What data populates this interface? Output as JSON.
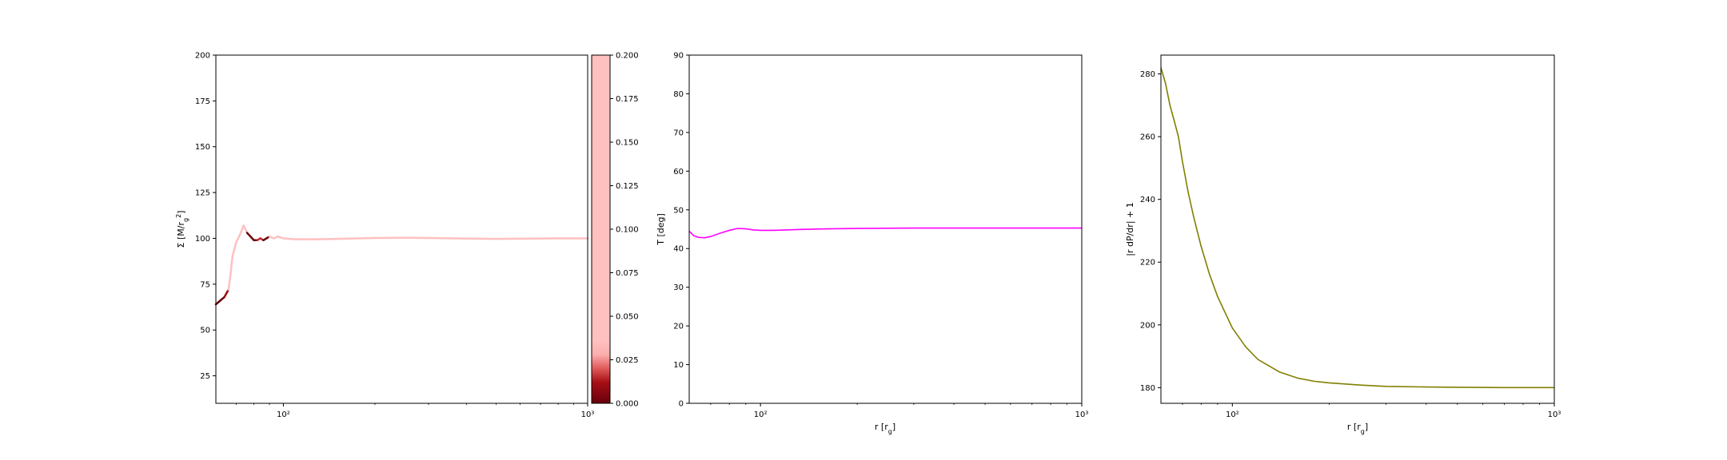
{
  "chart_data": [
    {
      "type": "line",
      "xlabel": "",
      "ylabel": "Σ [M/r_g²]",
      "xscale": "log",
      "xlim": [
        60,
        1000
      ],
      "ylim": [
        10,
        200
      ],
      "yticks": [
        25,
        50,
        75,
        100,
        125,
        150,
        175,
        200
      ],
      "xticks": [
        {
          "value": 100,
          "label": "10²"
        },
        {
          "value": 1000,
          "label": "10³"
        }
      ],
      "colormap": "reds",
      "series": [
        {
          "color_by": "colorbar value",
          "x": [
            60,
            62,
            64,
            66,
            67,
            68,
            70,
            72,
            74,
            76,
            78,
            80,
            82,
            84,
            86,
            88,
            90,
            93,
            96,
            100,
            110,
            130,
            160,
            200,
            250,
            300,
            400,
            500,
            600,
            800,
            1000
          ],
          "y": [
            64,
            66,
            68,
            72,
            80,
            90,
            98,
            102,
            107,
            103,
            101,
            99,
            99,
            100,
            99,
            100,
            101,
            100,
            101,
            100,
            99.5,
            99.5,
            99.8,
            100.2,
            100.3,
            100.2,
            99.9,
            99.7,
            99.8,
            100,
            100
          ],
          "c": [
            0.0,
            0.0,
            0.0,
            0.02,
            0.2,
            0.2,
            0.2,
            0.2,
            0.2,
            0.0,
            0.0,
            0.0,
            0.0,
            0.03,
            0.0,
            0.0,
            0.0,
            0.1,
            0.06,
            0.15,
            0.2,
            0.2,
            0.2,
            0.2,
            0.2,
            0.2,
            0.2,
            0.2,
            0.2,
            0.2,
            0.2
          ]
        }
      ],
      "colorbar": {
        "range": [
          0,
          0.2
        ],
        "ticks": [
          "0.000",
          "0.025",
          "0.050",
          "0.075",
          "0.100",
          "0.125",
          "0.150",
          "0.175",
          "0.200"
        ]
      }
    },
    {
      "type": "line",
      "xlabel": "r [r_g]",
      "ylabel": "T [deg]",
      "xscale": "log",
      "xlim": [
        60,
        1000
      ],
      "ylim": [
        0,
        90
      ],
      "yticks": [
        0,
        10,
        20,
        30,
        40,
        50,
        60,
        70,
        80,
        90
      ],
      "xticks": [
        {
          "value": 100,
          "label": "10²"
        },
        {
          "value": 1000,
          "label": "10³"
        }
      ],
      "series": [
        {
          "color": "#ff00ff",
          "x": [
            60,
            62,
            64,
            67,
            70,
            75,
            80,
            85,
            90,
            95,
            100,
            110,
            130,
            160,
            200,
            300,
            400,
            600,
            1000
          ],
          "y": [
            44.5,
            43.3,
            42.9,
            42.8,
            43.1,
            44.0,
            44.7,
            45.2,
            45.1,
            44.8,
            44.7,
            44.7,
            44.9,
            45.1,
            45.2,
            45.3,
            45.3,
            45.3,
            45.3
          ]
        }
      ]
    },
    {
      "type": "line",
      "xlabel": "r [r_g]",
      "ylabel": "|r dP/dr| + 1",
      "xscale": "log",
      "xlim": [
        60,
        1000
      ],
      "ylim": [
        175,
        286
      ],
      "yticks": [
        180,
        200,
        220,
        240,
        260,
        280
      ],
      "xticks": [
        {
          "value": 100,
          "label": "10²"
        },
        {
          "value": 1000,
          "label": "10³"
        }
      ],
      "series": [
        {
          "color": "#808000",
          "x": [
            60,
            62,
            64,
            66,
            68,
            70,
            73,
            76,
            80,
            85,
            90,
            100,
            110,
            120,
            140,
            160,
            180,
            200,
            250,
            300,
            400,
            500,
            700,
            1000
          ],
          "y": [
            282,
            277,
            270,
            265,
            260,
            252,
            242,
            234,
            225,
            216,
            209,
            199,
            193,
            189,
            185,
            183,
            182,
            181.5,
            180.8,
            180.4,
            180.2,
            180.1,
            180,
            180
          ]
        }
      ]
    }
  ]
}
